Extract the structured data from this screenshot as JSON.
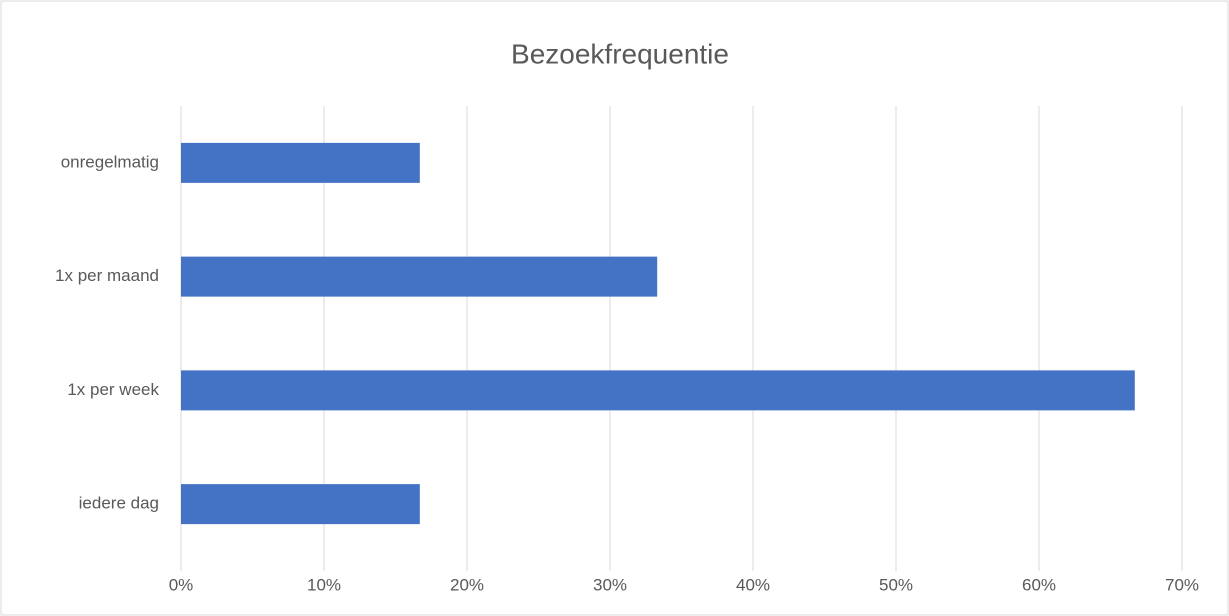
{
  "chart_data": {
    "type": "bar",
    "orientation": "horizontal",
    "title": "Bezoekfrequentie",
    "categories": [
      "iedere dag",
      "1x per week",
      "1x per maand",
      "onregelmatig"
    ],
    "values": [
      16.7,
      66.7,
      33.3,
      16.7
    ],
    "color": "#4472c4",
    "xlim": [
      0,
      70
    ],
    "xticks": [
      {
        "value": 0,
        "label": "0%"
      },
      {
        "value": 10,
        "label": "10%"
      },
      {
        "value": 20,
        "label": "20%"
      },
      {
        "value": 30,
        "label": "30%"
      },
      {
        "value": 40,
        "label": "40%"
      },
      {
        "value": 50,
        "label": "50%"
      },
      {
        "value": 60,
        "label": "60%"
      },
      {
        "value": 70,
        "label": "70%"
      }
    ],
    "grid": true
  }
}
